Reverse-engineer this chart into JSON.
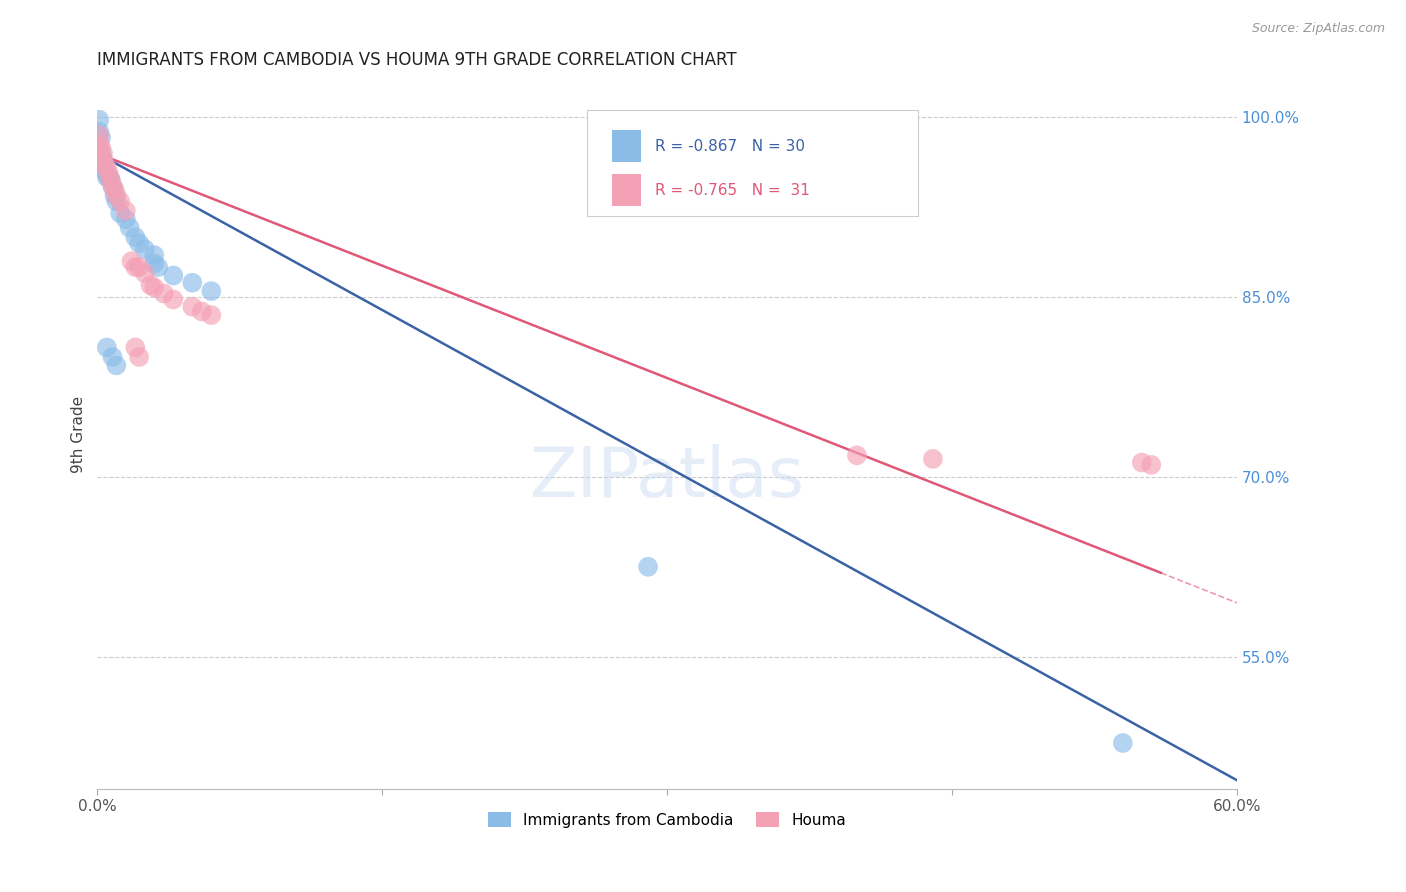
{
  "title": "IMMIGRANTS FROM CAMBODIA VS HOUMA 9TH GRADE CORRELATION CHART",
  "source": "Source: ZipAtlas.com",
  "ylabel": "9th Grade",
  "right_ytick_labels": [
    "100.0%",
    "85.0%",
    "70.0%",
    "55.0%"
  ],
  "right_ytick_values": [
    1.0,
    0.85,
    0.7,
    0.55
  ],
  "xlim": [
    0.0,
    0.6
  ],
  "ylim": [
    0.44,
    1.03
  ],
  "xtick_labels": [
    "0.0%",
    "",
    "",
    "",
    "60.0%"
  ],
  "xtick_values": [
    0.0,
    0.15,
    0.3,
    0.45,
    0.6
  ],
  "blue_color": "#8BBCE8",
  "pink_color": "#F4A0B5",
  "blue_line_color": "#3A62A7",
  "pink_line_color": "#E05878",
  "legend_x1_label": "Immigrants from Cambodia",
  "legend_x2_label": "Houma",
  "blue_line_x0": 0.0,
  "blue_line_y0": 0.97,
  "blue_line_x1": 0.6,
  "blue_line_y1": 0.447,
  "pink_line_x0": 0.0,
  "pink_line_y0": 0.97,
  "pink_line_x1": 0.56,
  "pink_line_y1": 0.62,
  "blue_x": [
    0.001,
    0.001,
    0.002,
    0.002,
    0.003,
    0.003,
    0.004,
    0.005,
    0.006,
    0.007,
    0.008,
    0.009,
    0.01,
    0.012,
    0.015,
    0.017,
    0.02,
    0.022,
    0.025,
    0.03,
    0.03,
    0.032,
    0.04,
    0.05,
    0.06,
    0.005,
    0.008,
    0.01,
    0.29,
    0.54
  ],
  "blue_y": [
    0.998,
    0.988,
    0.983,
    0.97,
    0.965,
    0.96,
    0.955,
    0.95,
    0.95,
    0.948,
    0.942,
    0.935,
    0.93,
    0.92,
    0.915,
    0.908,
    0.9,
    0.895,
    0.89,
    0.885,
    0.878,
    0.875,
    0.868,
    0.862,
    0.855,
    0.808,
    0.8,
    0.793,
    0.625,
    0.478
  ],
  "pink_x": [
    0.001,
    0.001,
    0.002,
    0.003,
    0.003,
    0.004,
    0.005,
    0.006,
    0.007,
    0.008,
    0.009,
    0.01,
    0.012,
    0.015,
    0.018,
    0.02,
    0.022,
    0.025,
    0.028,
    0.03,
    0.035,
    0.04,
    0.05,
    0.055,
    0.06,
    0.02,
    0.022,
    0.4,
    0.44,
    0.55,
    0.555
  ],
  "pink_y": [
    0.985,
    0.978,
    0.975,
    0.97,
    0.965,
    0.96,
    0.958,
    0.953,
    0.948,
    0.943,
    0.94,
    0.935,
    0.93,
    0.922,
    0.88,
    0.875,
    0.875,
    0.87,
    0.86,
    0.858,
    0.853,
    0.848,
    0.842,
    0.838,
    0.835,
    0.808,
    0.8,
    0.718,
    0.715,
    0.712,
    0.71
  ]
}
